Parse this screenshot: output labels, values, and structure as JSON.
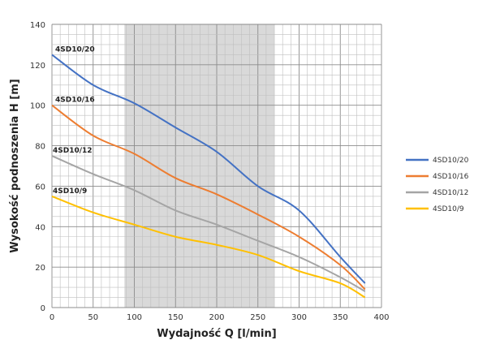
{
  "chart_data": {
    "type": "line",
    "xlabel": "Wydajność Q [l/min]",
    "ylabel": "Wysokość podnoszenia H [m]",
    "xlim": [
      0,
      400
    ],
    "ylim": [
      0,
      140
    ],
    "xticks": [
      0,
      50,
      100,
      150,
      200,
      250,
      300,
      350,
      400
    ],
    "yticks": [
      0,
      20,
      40,
      60,
      80,
      100,
      120,
      140
    ],
    "grid": true,
    "shaded_range_x": [
      88,
      270
    ],
    "legend": "right",
    "x": [
      0,
      50,
      100,
      150,
      200,
      250,
      300,
      350,
      380
    ],
    "series": [
      {
        "name": "4SD10/20",
        "color": "#4472c4",
        "values": [
          125,
          110,
          101,
          89,
          77,
          60,
          48,
          25,
          12
        ]
      },
      {
        "name": "4SD10/16",
        "color": "#ed7d31",
        "values": [
          100,
          85,
          76,
          64,
          56,
          46,
          35,
          21,
          9
        ]
      },
      {
        "name": "4SD10/12",
        "color": "#a5a5a5",
        "values": [
          75,
          66,
          58,
          48,
          41,
          33,
          25,
          15,
          8
        ]
      },
      {
        "name": "4SD10/9",
        "color": "#ffc000",
        "values": [
          55,
          47,
          41,
          35,
          31,
          26,
          18,
          12,
          5
        ]
      }
    ]
  }
}
